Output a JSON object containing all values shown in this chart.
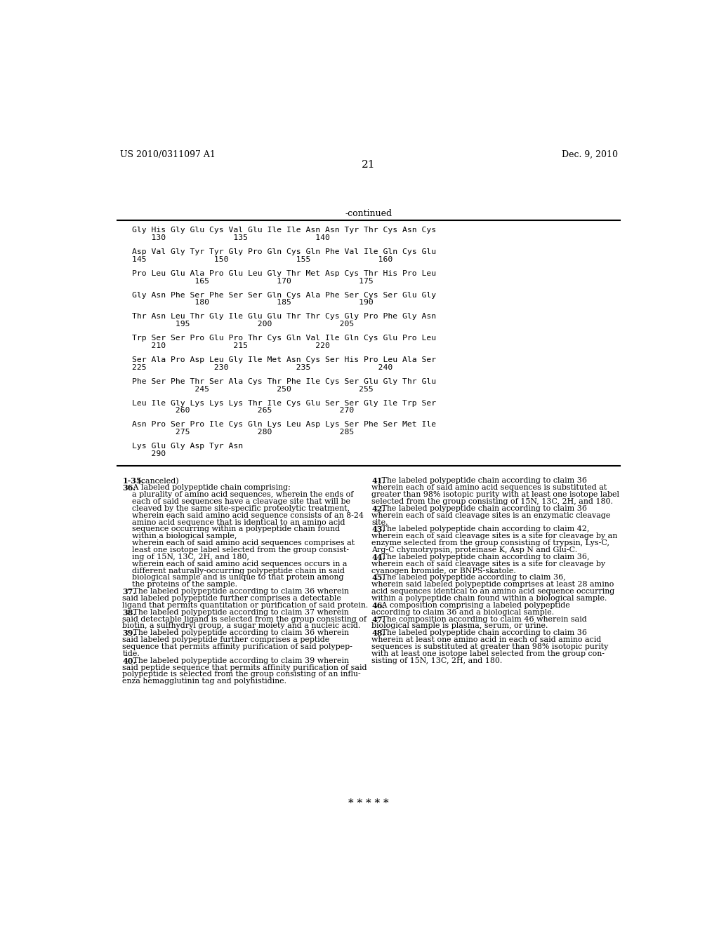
{
  "patent_number": "US 2010/0311097 A1",
  "date": "Dec. 9, 2010",
  "page_number": "21",
  "continued_label": "-continued",
  "background_color": "#ffffff",
  "text_color": "#000000",
  "footer": "* * * * *",
  "seq_lines": [
    [
      "Gly His Gly Glu Cys Val Glu Ile Ile Asn Asn Tyr Thr Cys Asn Cys",
      "    130              135              140"
    ],
    [
      "Asp Val Gly Tyr Tyr Gly Pro Gln Cys Gln Phe Val Ile Gln Cys Glu",
      "145              150              155              160"
    ],
    [
      "Pro Leu Glu Ala Pro Glu Leu Gly Thr Met Asp Cys Thr His Pro Leu",
      "             165              170              175"
    ],
    [
      "Gly Asn Phe Ser Phe Ser Ser Gln Cys Ala Phe Ser Cys Ser Glu Gly",
      "             180              185              190"
    ],
    [
      "Thr Asn Leu Thr Gly Ile Glu Glu Thr Thr Cys Gly Pro Phe Gly Asn",
      "         195              200              205"
    ],
    [
      "Trp Ser Ser Pro Glu Pro Thr Cys Gln Val Ile Gln Cys Glu Pro Leu",
      "    210              215              220"
    ],
    [
      "Ser Ala Pro Asp Leu Gly Ile Met Asn Cys Ser His Pro Leu Ala Ser",
      "225              230              235              240"
    ],
    [
      "Phe Ser Phe Thr Ser Ala Cys Thr Phe Ile Cys Ser Glu Gly Thr Glu",
      "             245              250              255"
    ],
    [
      "Leu Ile Gly Lys Lys Lys Thr Ile Cys Glu Ser Ser Gly Ile Trp Ser",
      "         260              265              270"
    ],
    [
      "Asn Pro Ser Pro Ile Cys Gln Lys Leu Asp Lys Ser Phe Ser Met Ile",
      "         275              280              285"
    ],
    [
      "Lys Glu Gly Asp Tyr Asn",
      "    290"
    ]
  ],
  "left_claims_lines": [
    {
      "type": "bold_start",
      "bold": "1-35.",
      "normal": " (canceled)"
    },
    {
      "type": "bold_start",
      "bold": "36.",
      "normal": " A labeled polypeptide chain comprising:"
    },
    {
      "type": "plain",
      "text": "    a plurality of amino acid sequences, wherein the ends of"
    },
    {
      "type": "plain",
      "text": "    each of said sequences have a cleavage site that will be"
    },
    {
      "type": "plain",
      "text": "    cleaved by the same site-specific proteolytic treatment,"
    },
    {
      "type": "plain",
      "text": "    wherein each said amino acid sequence consists of an 8-24"
    },
    {
      "type": "plain",
      "text": "    amino acid sequence that is identical to an amino acid"
    },
    {
      "type": "plain",
      "text": "    sequence occurring within a polypeptide chain found"
    },
    {
      "type": "plain",
      "text": "    within a biological sample,"
    },
    {
      "type": "plain",
      "text": "    wherein each of said amino acid sequences comprises at"
    },
    {
      "type": "plain",
      "text": "    least one isotope label selected from the group consist-"
    },
    {
      "type": "plain",
      "text": "    ing of 15N, 13C, 2H, and 180,"
    },
    {
      "type": "plain",
      "text": "    wherein each of said amino acid sequences occurs in a"
    },
    {
      "type": "plain",
      "text": "    different naturally-occurring polypeptide chain in said"
    },
    {
      "type": "plain",
      "text": "    biological sample and is unique to that protein among"
    },
    {
      "type": "plain",
      "text": "    the proteins of the sample."
    },
    {
      "type": "bold_start",
      "bold": "37.",
      "normal": " The labeled polypeptide according to claim 36 wherein"
    },
    {
      "type": "plain",
      "text": "said labeled polypeptide further comprises a detectable"
    },
    {
      "type": "plain",
      "text": "ligand that permits quantitation or purification of said protein."
    },
    {
      "type": "bold_start",
      "bold": "38.",
      "normal": " The labeled polypeptide according to claim 37 wherein"
    },
    {
      "type": "plain",
      "text": "said detectable ligand is selected from the group consisting of"
    },
    {
      "type": "plain",
      "text": "biotin, a sulfhydryl group, a sugar moiety and a nucleic acid."
    },
    {
      "type": "bold_start",
      "bold": "39.",
      "normal": " The labeled polypeptide according to claim 36 wherein"
    },
    {
      "type": "plain",
      "text": "said labeled polypeptide further comprises a peptide"
    },
    {
      "type": "plain",
      "text": "sequence that permits affinity purification of said polypep-"
    },
    {
      "type": "plain",
      "text": "tide."
    },
    {
      "type": "bold_start",
      "bold": "40.",
      "normal": " The labeled polypeptide according to claim 39 wherein"
    },
    {
      "type": "plain",
      "text": "said peptide sequence that permits affinity purification of said"
    },
    {
      "type": "plain",
      "text": "polypeptide is selected from the group consisting of an influ-"
    },
    {
      "type": "plain",
      "text": "enza hemagglutinin tag and polyhistidine."
    }
  ],
  "right_claims_lines": [
    {
      "type": "bold_start",
      "bold": "41.",
      "normal": " The labeled polypeptide chain according to claim 36"
    },
    {
      "type": "plain",
      "text": "wherein each of said amino acid sequences is substituted at"
    },
    {
      "type": "plain",
      "text": "greater than 98% isotopic purity with at least one isotope label"
    },
    {
      "type": "plain",
      "text": "selected from the group consisting of 15N, 13C, 2H, and 180."
    },
    {
      "type": "bold_start",
      "bold": "42.",
      "normal": " The labeled polypeptide chain according to claim 36"
    },
    {
      "type": "plain",
      "text": "wherein each of said cleavage sites is an enzymatic cleavage"
    },
    {
      "type": "plain",
      "text": "site."
    },
    {
      "type": "bold_start",
      "bold": "43.",
      "normal": " The labeled polypeptide chain according to claim 42,"
    },
    {
      "type": "plain",
      "text": "wherein each of said cleavage sites is a site for cleavage by an"
    },
    {
      "type": "plain",
      "text": "enzyme selected from the group consisting of trypsin, Lys-C,"
    },
    {
      "type": "plain",
      "text": "Arg-C chymotrypsin, proteinase K, Asp N and Glu-C."
    },
    {
      "type": "bold_start",
      "bold": "44.",
      "normal": " The labeled polypeptide chain according to claim 36,"
    },
    {
      "type": "plain",
      "text": "wherein each of said cleavage sites is a site for cleavage by"
    },
    {
      "type": "plain",
      "text": "cyanogen bromide, or BNPS-skatole."
    },
    {
      "type": "bold_start",
      "bold": "45.",
      "normal": " The labeled polypeptide according to claim 36,"
    },
    {
      "type": "plain",
      "text": "wherein said labeled polypeptide comprises at least 28 amino"
    },
    {
      "type": "plain",
      "text": "acid sequences identical to an amino acid sequence occurring"
    },
    {
      "type": "plain",
      "text": "within a polypeptide chain found within a biological sample."
    },
    {
      "type": "bold_start",
      "bold": "46.",
      "normal": " A composition comprising a labeled polypeptide"
    },
    {
      "type": "plain",
      "text": "according to claim 36 and a biological sample."
    },
    {
      "type": "bold_start",
      "bold": "47.",
      "normal": " The composition according to claim 46 wherein said"
    },
    {
      "type": "plain",
      "text": "biological sample is plasma, serum, or urine."
    },
    {
      "type": "bold_start",
      "bold": "48.",
      "normal": " The labeled polypeptide chain according to claim 36"
    },
    {
      "type": "plain",
      "text": "wherein at least one amino acid in each of said amino acid"
    },
    {
      "type": "plain",
      "text": "sequences is substituted at greater than 98% isotopic purity"
    },
    {
      "type": "plain",
      "text": "with at least one isotope label selected from the group con-"
    },
    {
      "type": "plain",
      "text": "sisting of 15N, 13C, 2H, and 180."
    }
  ]
}
